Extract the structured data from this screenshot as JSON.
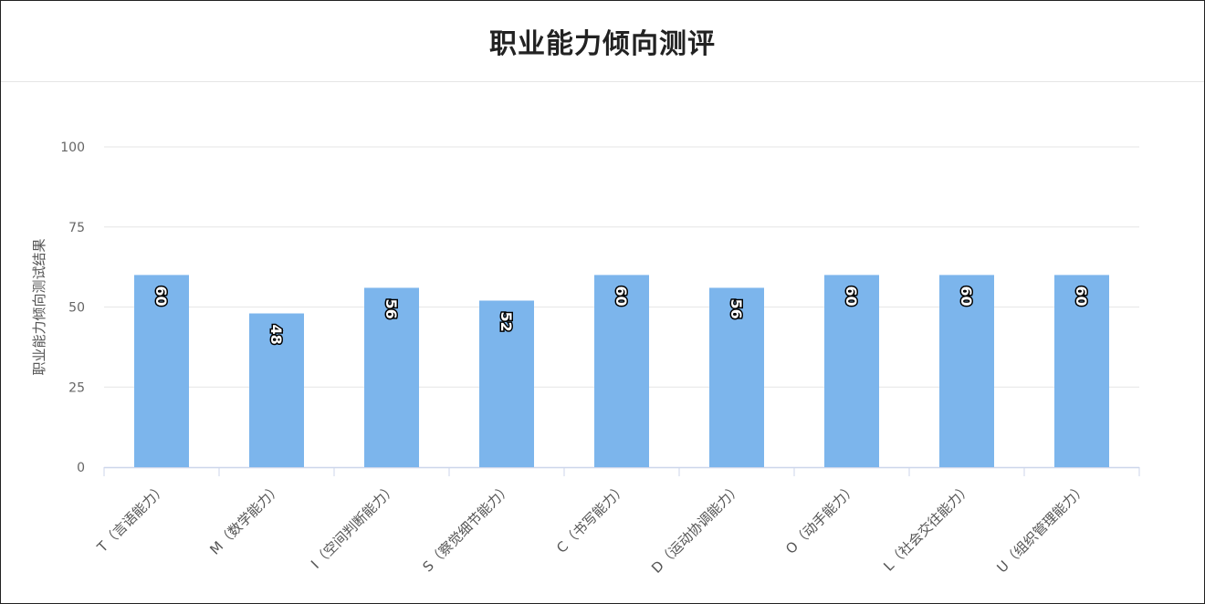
{
  "page": {
    "title": "职业能力倾向测评"
  },
  "chart_data": {
    "type": "bar",
    "title": "职业能力倾向测评",
    "ylabel": "职业能力倾向测试结果",
    "xlabel": "",
    "ylim": [
      0,
      100
    ],
    "yticks": [
      0,
      25,
      50,
      75,
      100
    ],
    "grid": true,
    "legend": "none",
    "bar_color": "#7cb5ec",
    "categories": [
      "T（言语能力）",
      "M（数学能力）",
      "I（空间判断能力）",
      "S（察觉细节能力）",
      "C（书写能力）",
      "D（运动协调能力）",
      "O（动手能力）",
      "L（社会交往能力）",
      "U（组织管理能力）"
    ],
    "values": [
      60,
      48,
      56,
      52,
      60,
      56,
      60,
      60,
      60
    ],
    "data_labels": [
      "60",
      "48",
      "56",
      "52",
      "60",
      "56",
      "60",
      "60",
      "60"
    ]
  }
}
